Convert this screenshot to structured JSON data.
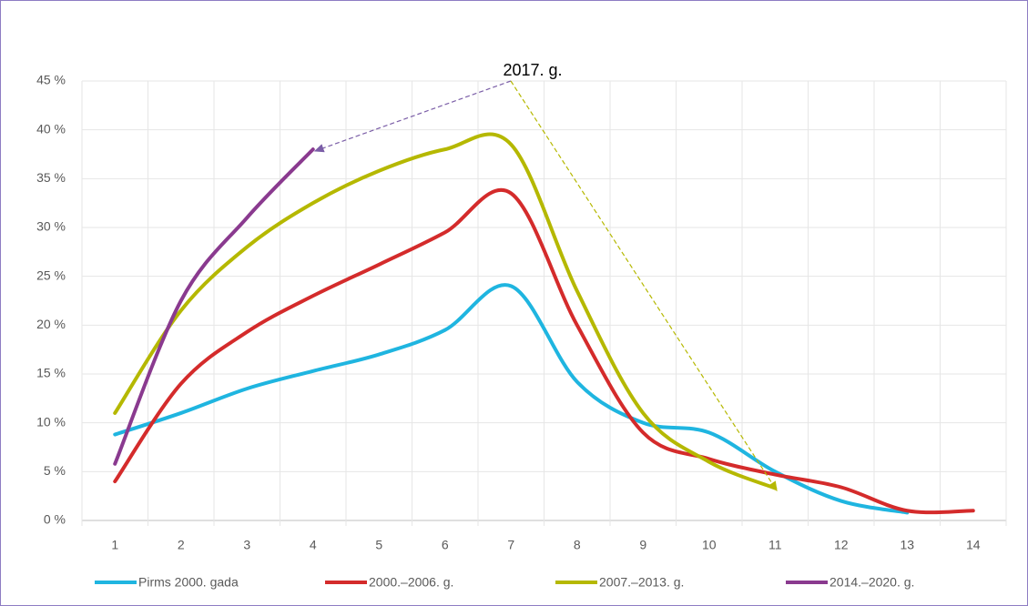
{
  "chart_data": {
    "type": "line",
    "annotation": "2017. g.",
    "categories": [
      "1",
      "2",
      "3",
      "4",
      "5",
      "6",
      "7",
      "8",
      "9",
      "10",
      "11",
      "12",
      "13",
      "14"
    ],
    "series": [
      {
        "name": "Pirms 2000. gada",
        "color": "#1fb5e0",
        "values": [
          8.8,
          11,
          13.5,
          15.3,
          17,
          19.5,
          24,
          14.2,
          10,
          9,
          5,
          2,
          0.8,
          null
        ]
      },
      {
        "name": "2000.–2006. g.",
        "color": "#d42b2b",
        "values": [
          4,
          14,
          19.3,
          23,
          26.2,
          29.5,
          33.5,
          20,
          9,
          6.3,
          4.7,
          3.4,
          1,
          1
        ]
      },
      {
        "name": "2007.–2013. g.",
        "color": "#b5b800",
        "values": [
          11,
          21.5,
          28,
          32.5,
          35.8,
          38,
          38.5,
          23.5,
          11,
          6,
          3.3,
          null,
          null,
          null
        ]
      },
      {
        "name": "2014.–2020. g.",
        "color": "#8a3a8f",
        "values": [
          5.8,
          22.5,
          31,
          38,
          null,
          null,
          null,
          null,
          null,
          null,
          null,
          null,
          null,
          null
        ]
      }
    ],
    "ylim": [
      0,
      45
    ],
    "yticks": [
      {
        "value": 0,
        "label": "0 %"
      },
      {
        "value": 5,
        "label": "5 %"
      },
      {
        "value": 10,
        "label": "10 %"
      },
      {
        "value": 15,
        "label": "15 %"
      },
      {
        "value": 20,
        "label": "20 %"
      },
      {
        "value": 25,
        "label": "25 %"
      },
      {
        "value": 30,
        "label": "30 %"
      },
      {
        "value": 35,
        "label": "35 %"
      },
      {
        "value": 40,
        "label": "40 %"
      },
      {
        "value": 45,
        "label": "45 %"
      }
    ],
    "grid": true
  }
}
